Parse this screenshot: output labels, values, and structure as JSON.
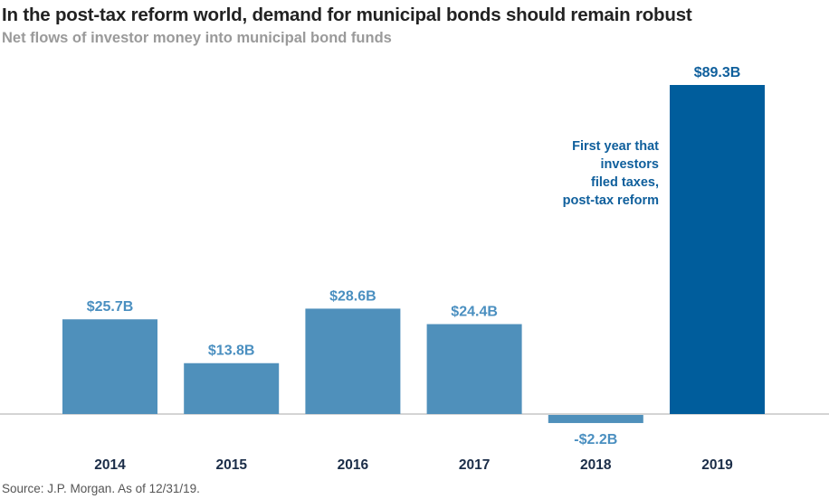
{
  "chart_data": {
    "type": "bar",
    "title": "In the post-tax reform world, demand for municipal bonds should remain robust",
    "subtitle": "Net flows of investor money into municipal bond funds",
    "categories": [
      "2014",
      "2015",
      "2016",
      "2017",
      "2018",
      "2019"
    ],
    "values": [
      25.7,
      13.8,
      28.6,
      24.4,
      -2.2,
      89.3
    ],
    "data_labels": [
      "$25.7B",
      "$13.8B",
      "$28.6B",
      "$24.4B",
      "-$2.2B",
      "$89.3B"
    ],
    "xlabel": "",
    "ylabel": "",
    "units": "USD billions",
    "ylim": [
      -2.2,
      89.3
    ],
    "grid": false,
    "legend": "none",
    "highlight_index": 5,
    "annotation": [
      "First year that",
      "investors",
      "filed taxes,",
      "post-tax reform"
    ],
    "source": "Source: J.P. Morgan. As of 12/31/19.",
    "colors": {
      "bar": "#4f90bb",
      "highlight": "#005d9c",
      "label": "#4a8fc0",
      "highlight_label": "#0f5f9c",
      "year": "#1b2d48",
      "axis": "#bbbbbb"
    }
  }
}
